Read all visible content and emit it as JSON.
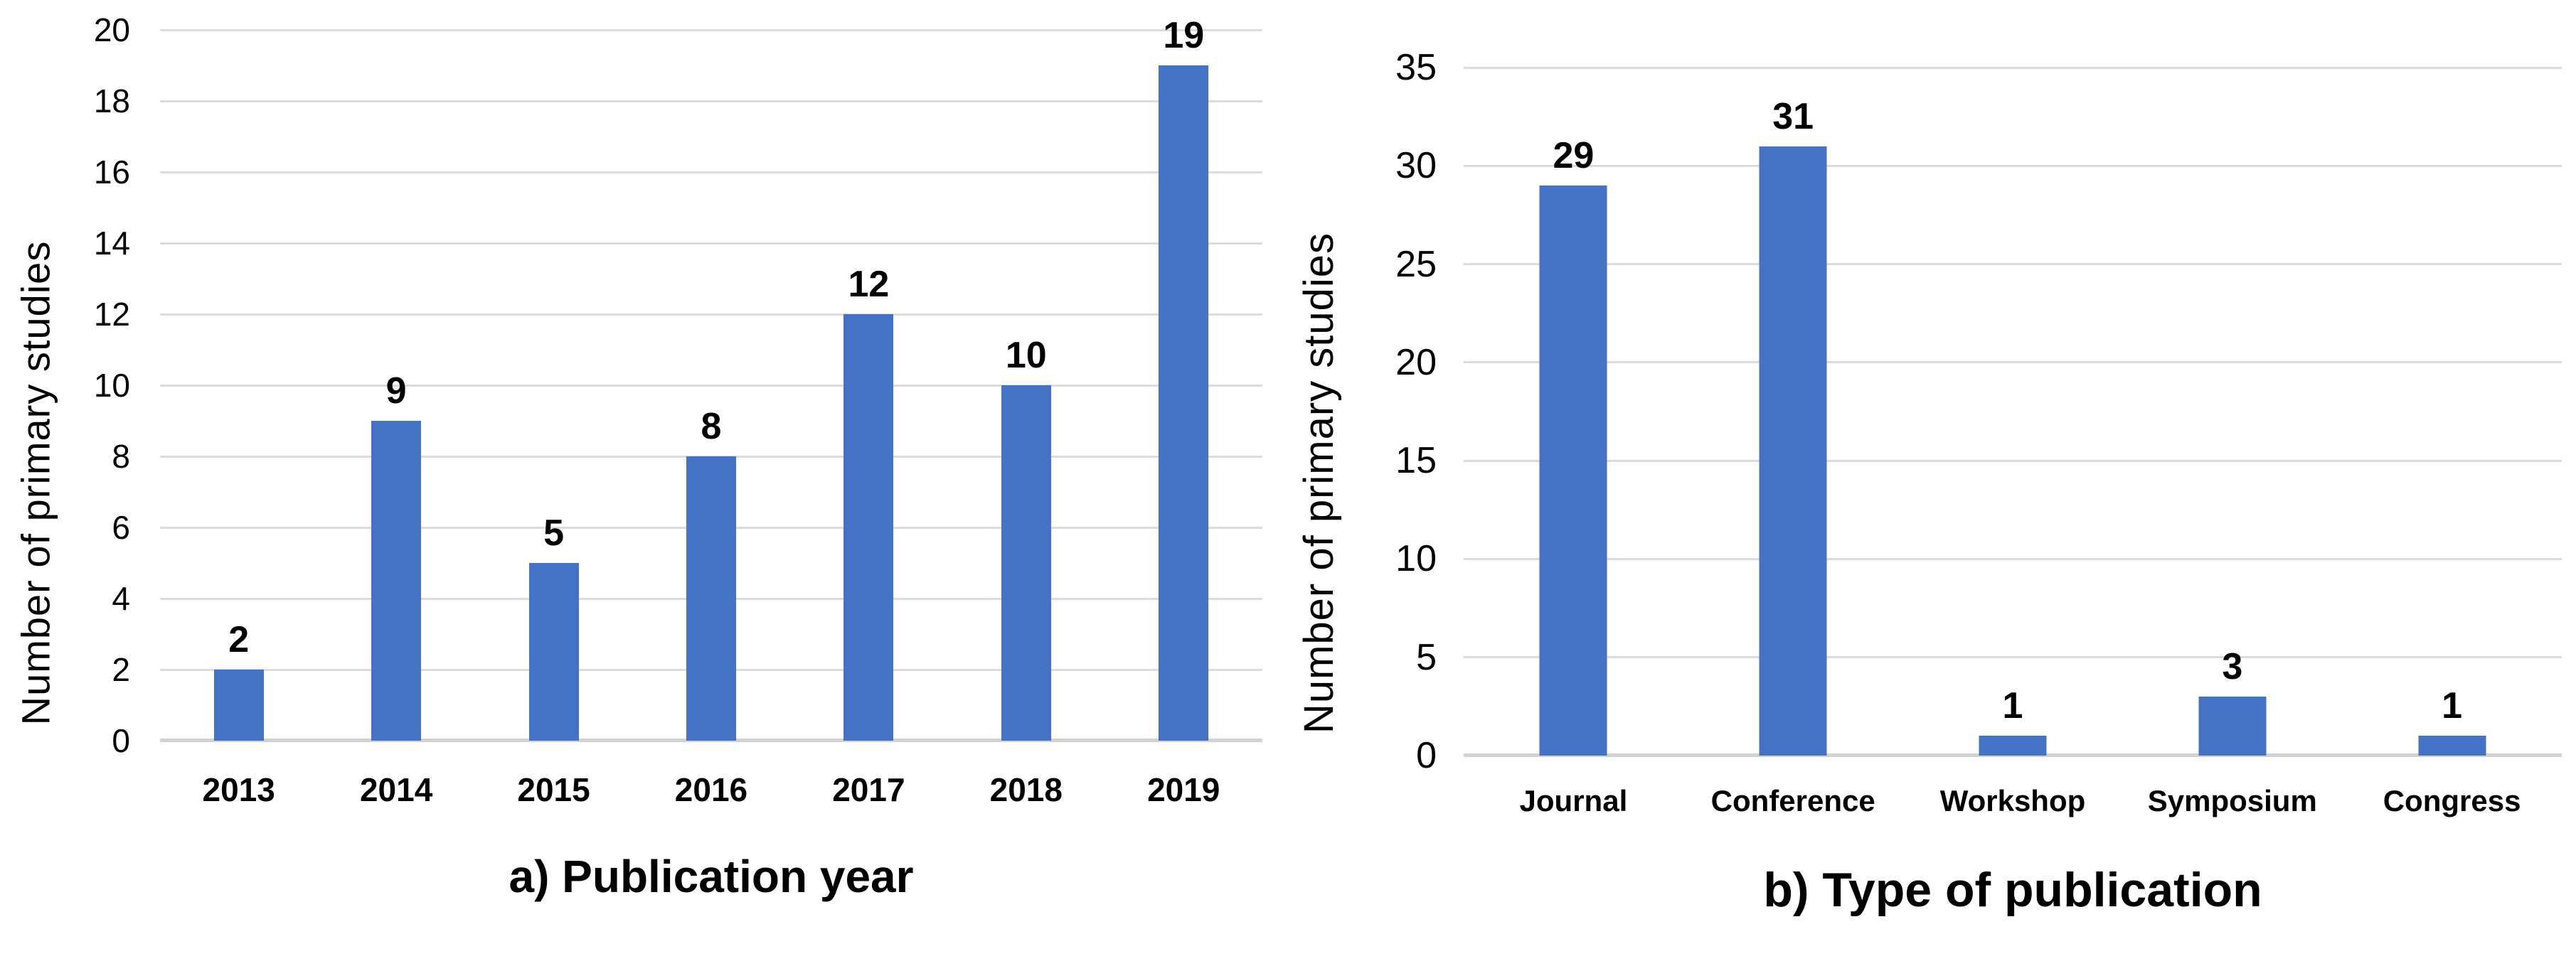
{
  "figure": {
    "background": "#ffffff",
    "description": "Two side-by-side bar charts of primary studies"
  },
  "colors": {
    "bar": "#4472C4",
    "gridline": "#dbdbdb",
    "axis_line": "#d2d2d2",
    "text": "#000000",
    "background": "#ffffff"
  },
  "chart_data": [
    {
      "type": "bar",
      "title": "a) Publication year",
      "ylabel": "Number of primary studies",
      "xlabel": "",
      "categories": [
        "2013",
        "2014",
        "2015",
        "2016",
        "2017",
        "2018",
        "2019"
      ],
      "values": [
        2,
        9,
        5,
        8,
        12,
        10,
        19
      ],
      "data_labels": [
        "2",
        "9",
        "5",
        "8",
        "12",
        "10",
        "19"
      ],
      "ylim": [
        0,
        20
      ],
      "ytick_step": 2,
      "yticks": [
        0,
        2,
        4,
        6,
        8,
        10,
        12,
        14,
        16,
        18,
        20
      ],
      "grid": "horizontal",
      "legend": "none",
      "bar_color": "#4472C4"
    },
    {
      "type": "bar",
      "title": "b) Type of publication",
      "ylabel": "Number of primary studies",
      "xlabel": "",
      "categories": [
        "Journal",
        "Conference",
        "Workshop",
        "Symposium",
        "Congress"
      ],
      "values": [
        29,
        31,
        1,
        3,
        1
      ],
      "data_labels": [
        "29",
        "31",
        "1",
        "3",
        "1"
      ],
      "ylim": [
        0,
        35
      ],
      "ytick_step": 5,
      "yticks": [
        0,
        5,
        10,
        15,
        20,
        25,
        30,
        35
      ],
      "grid": "horizontal",
      "legend": "none",
      "bar_color": "#4472C4"
    }
  ]
}
